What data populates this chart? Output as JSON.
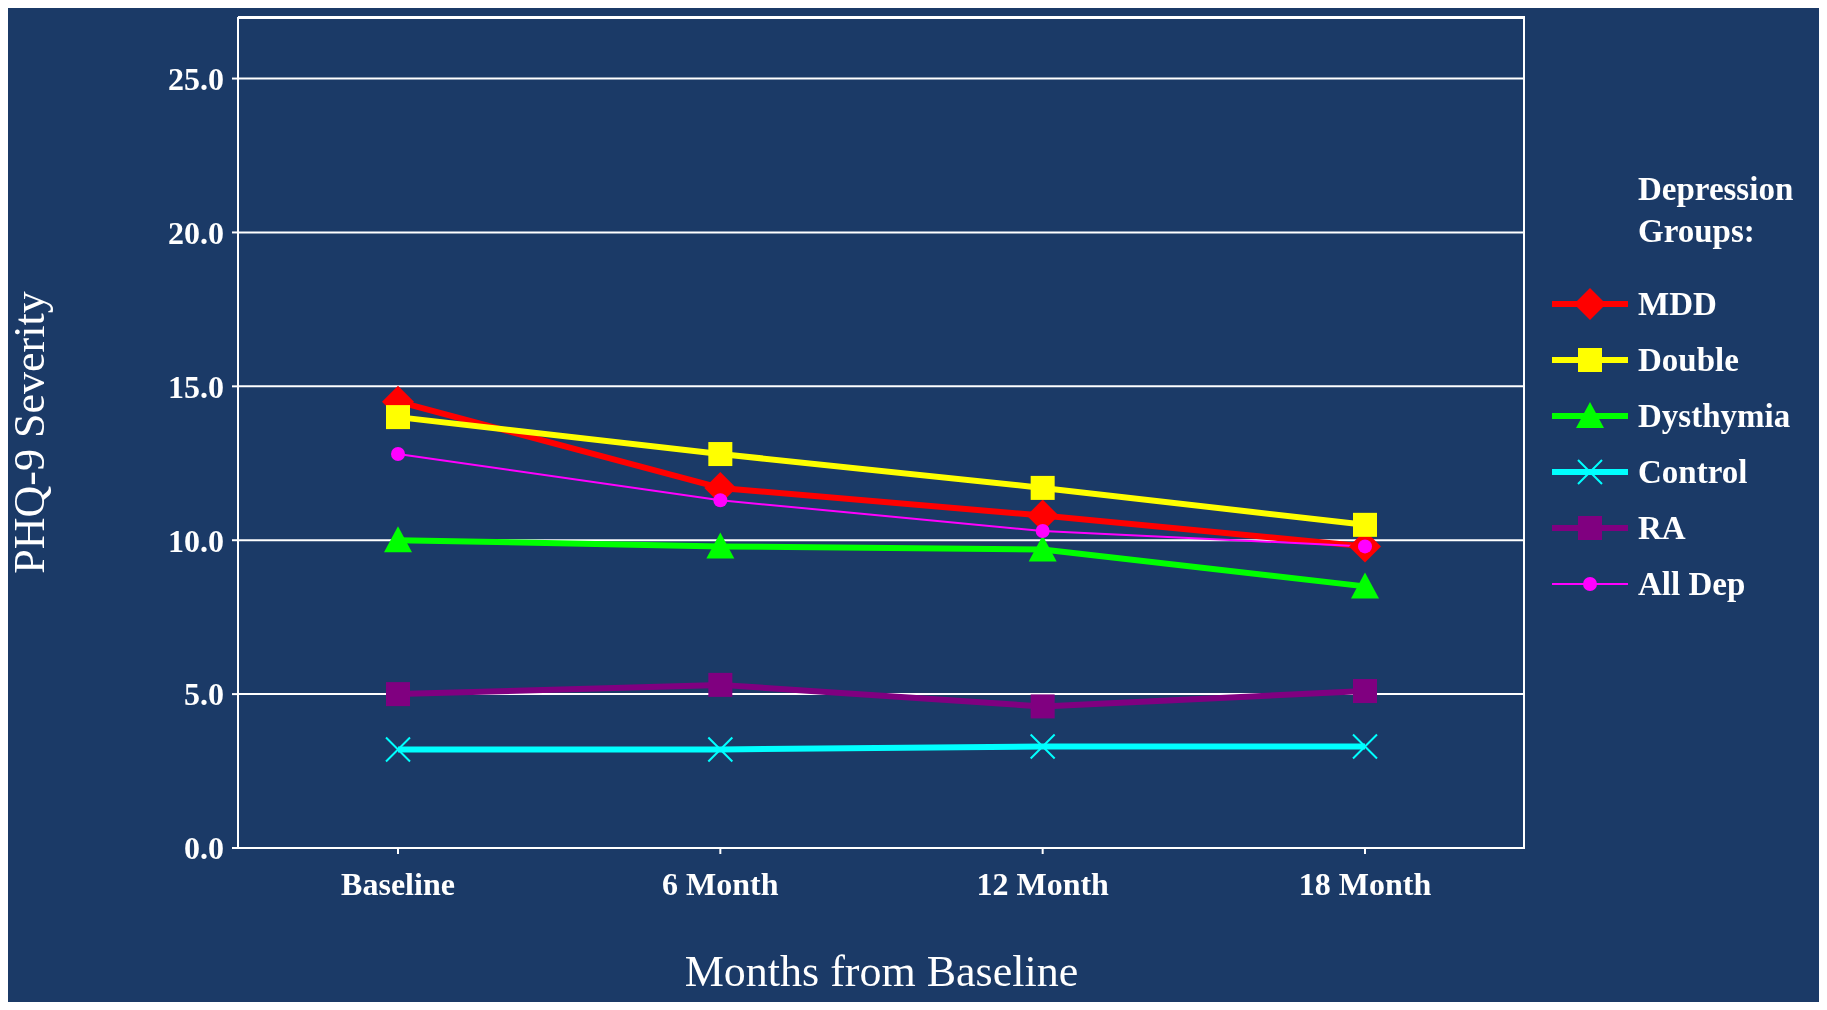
{
  "chart_data": {
    "type": "line",
    "xlabel": "Months from Baseline",
    "ylabel": "PHQ-9 Severity",
    "legend_title": "Depression Groups:",
    "categories": [
      "Baseline",
      "6 Month",
      "12 Month",
      "18 Month"
    ],
    "series": [
      {
        "name": "MDD",
        "color": "#ff0000",
        "marker": "diamond",
        "values": [
          14.5,
          11.7,
          10.8,
          9.8
        ]
      },
      {
        "name": "Double",
        "color": "#ffff00",
        "marker": "square",
        "values": [
          14.0,
          12.8,
          11.7,
          10.5
        ]
      },
      {
        "name": "Dysthymia",
        "color": "#00ff00",
        "marker": "triangle",
        "values": [
          10.0,
          9.8,
          9.7,
          8.5
        ]
      },
      {
        "name": "Control",
        "color": "#00ffff",
        "marker": "cross",
        "values": [
          3.2,
          3.2,
          3.3,
          3.3
        ]
      },
      {
        "name": "RA",
        "color": "#800080",
        "marker": "square",
        "values": [
          5.0,
          5.3,
          4.6,
          5.1
        ]
      },
      {
        "name": "All Dep",
        "color": "#ff00ff",
        "marker": "circle",
        "values": [
          12.8,
          11.3,
          10.3,
          9.8
        ]
      }
    ],
    "ylim": [
      0,
      27
    ],
    "yticks": [
      {
        "value": 0,
        "label": "0.0"
      },
      {
        "value": 5,
        "label": "5.0"
      },
      {
        "value": 10,
        "label": "10.0"
      },
      {
        "value": 15,
        "label": "15.0"
      },
      {
        "value": 20,
        "label": "20.0"
      },
      {
        "value": 25,
        "label": "25.0"
      }
    ],
    "grid": "y",
    "legend": "right",
    "line_style": "solid"
  }
}
